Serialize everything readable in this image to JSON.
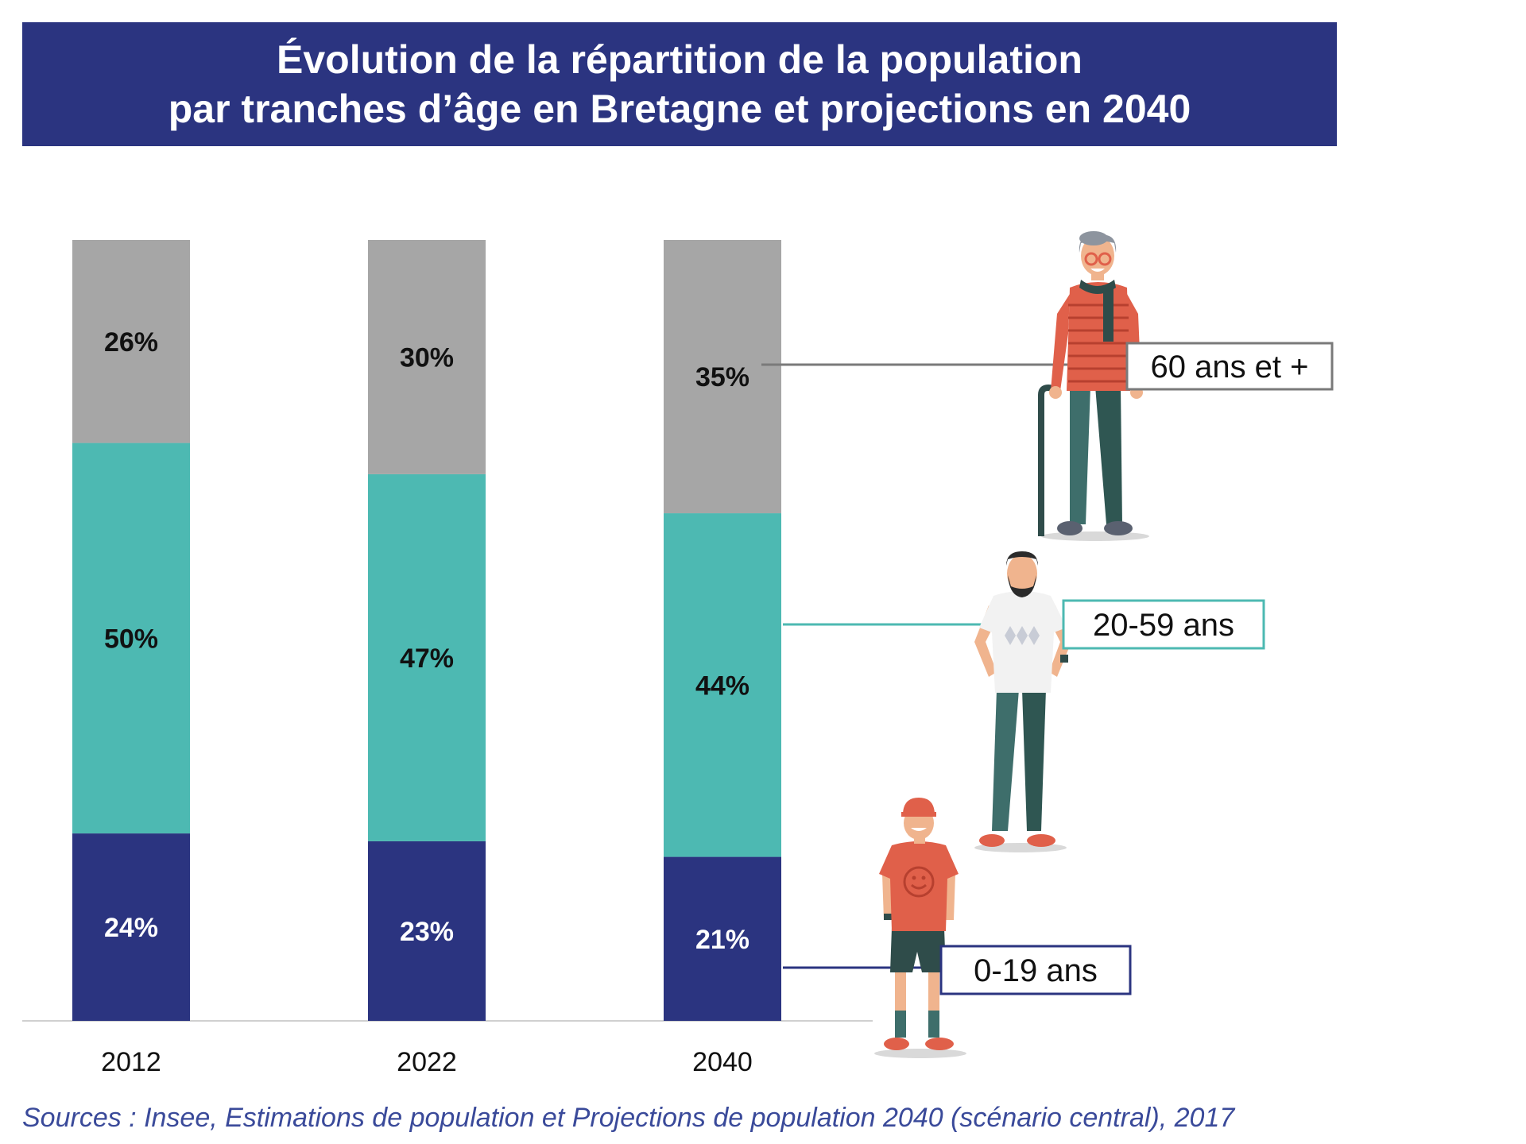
{
  "title": {
    "line1": "Évolution de la répartition de la population",
    "line2": "par tranches d’âge en Bretagne et projections en 2040"
  },
  "source": "Sources : Insee, Estimations de population et Projections de population 2040 (scénario central), 2017",
  "colors": {
    "banner": "#2b3480",
    "age_0_19": "#2b3480",
    "age_20_59": "#4db9b2",
    "age_60_plus": "#a6a6a6",
    "source_text": "#3a4a9a"
  },
  "icons": [
    "senior-man-illustration",
    "adult-man-illustration",
    "child-illustration"
  ],
  "chart_data": {
    "type": "bar",
    "stacked": true,
    "categories": [
      "2012",
      "2022",
      "2040"
    ],
    "ylim": [
      0,
      100
    ],
    "series": [
      {
        "name": "0-19 ans",
        "values": [
          24,
          23,
          21
        ],
        "labels": [
          "24%",
          "23%",
          "21%"
        ],
        "color": "#2b3480"
      },
      {
        "name": "20-59 ans",
        "values": [
          50,
          47,
          44
        ],
        "labels": [
          "50%",
          "47%",
          "44%"
        ],
        "color": "#4db9b2"
      },
      {
        "name": "60 ans et +",
        "values": [
          26,
          30,
          35
        ],
        "labels": [
          "26%",
          "30%",
          "35%"
        ],
        "color": "#a6a6a6"
      }
    ]
  }
}
